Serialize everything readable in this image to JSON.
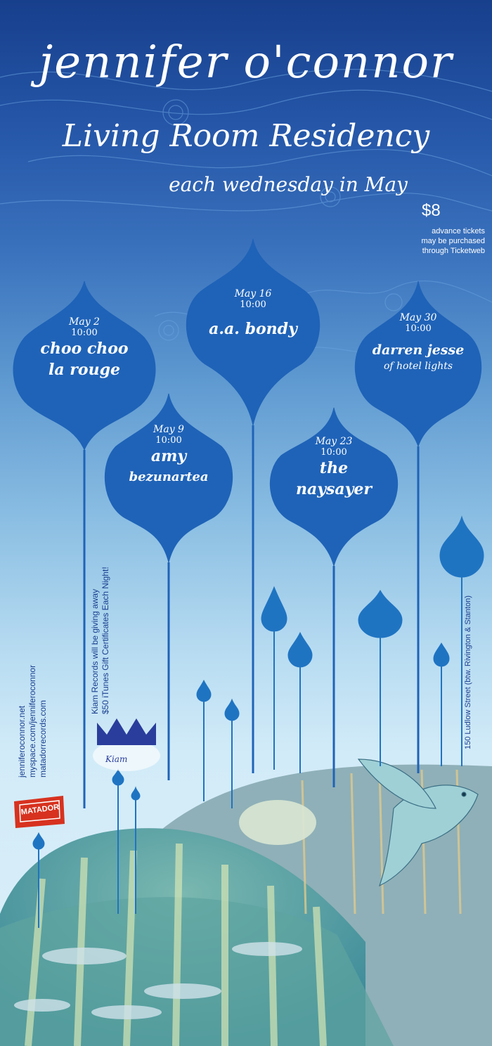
{
  "poster": {
    "artist": "jennifer o'connor",
    "subtitle": "Living Room Residency",
    "tagline": "each wednesday in May",
    "price": "$8",
    "ticket_note": [
      "advance tickets",
      "may be purchased",
      "through Ticketweb"
    ]
  },
  "shows": [
    {
      "date": "May 2",
      "time": "10:00",
      "act": [
        "choo choo",
        "la rouge"
      ],
      "sub": ""
    },
    {
      "date": "May 9",
      "time": "10:00",
      "act": [
        "amy",
        "bezunartea"
      ],
      "sub": ""
    },
    {
      "date": "May 16",
      "time": "10:00",
      "act": [
        "a.a. bondy"
      ],
      "sub": ""
    },
    {
      "date": "May 23",
      "time": "10:00",
      "act": [
        "the",
        "naysayer"
      ],
      "sub": ""
    },
    {
      "date": "May 30",
      "time": "10:00",
      "act": [
        "darren jesse"
      ],
      "sub": "of hotel lights"
    }
  ],
  "links": [
    "jenniferoconnor.net",
    "myspace.com/jenniferoconnor",
    "matadorrecords.com"
  ],
  "promo": [
    "Kiam Records will be giving away",
    "$50 iTunes Gift Certificates Each Night!"
  ],
  "address": "150 Ludlow Street (btw. Rivington & Stanton)",
  "logos": {
    "kiam": "Kiam",
    "matador": "MATADOR"
  },
  "colors": {
    "bulb": "#1f63b8",
    "sky_top": "#173f8c",
    "sky_bottom": "#dcf0fa",
    "text_dark": "#1a3f8f"
  }
}
